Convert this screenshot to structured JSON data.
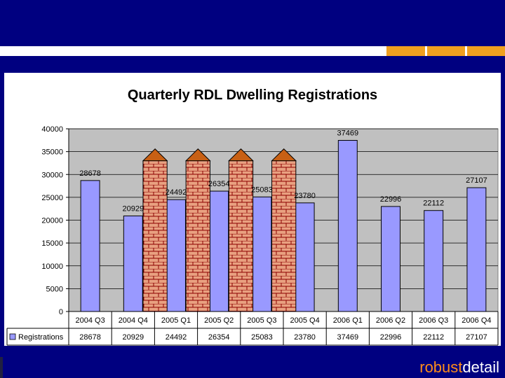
{
  "chart_data": {
    "type": "bar",
    "title": "Quarterly RDL Dwelling Registrations",
    "categories": [
      "2004 Q3",
      "2004 Q4",
      "2005 Q1",
      "2005 Q2",
      "2005 Q3",
      "2005 Q4",
      "2006 Q1",
      "2006 Q2",
      "2006 Q3",
      "2006 Q4"
    ],
    "series": [
      {
        "name": "Registrations",
        "values": [
          28678,
          20929,
          24492,
          26354,
          25083,
          23780,
          37469,
          22996,
          22112,
          27107
        ]
      }
    ],
    "ylim": [
      0,
      40000
    ],
    "yticks": [
      0,
      5000,
      10000,
      15000,
      20000,
      25000,
      30000,
      35000,
      40000
    ],
    "yticks_labels": [
      "0",
      "5000",
      "10000",
      "15000",
      "20000",
      "25000",
      "30000",
      "35000",
      "40000"
    ],
    "grid": true,
    "legend": "table-bottom",
    "highlighted_categories": [
      "2005 Q1",
      "2005 Q2",
      "2005 Q3",
      "2005 Q4"
    ],
    "data_labels": [
      "28678",
      "20929",
      "24492",
      "26354",
      "25083",
      "23780",
      "37469",
      "22996",
      "22112",
      "27107"
    ]
  },
  "colors": {
    "bar": "#9999ff",
    "plot_bg": "#c0c0c0",
    "brick": "#e8a080",
    "roof": "#c86014",
    "brand_accent": "#ff8c1a"
  },
  "branding": {
    "part1": "robust",
    "part2": "detail"
  }
}
